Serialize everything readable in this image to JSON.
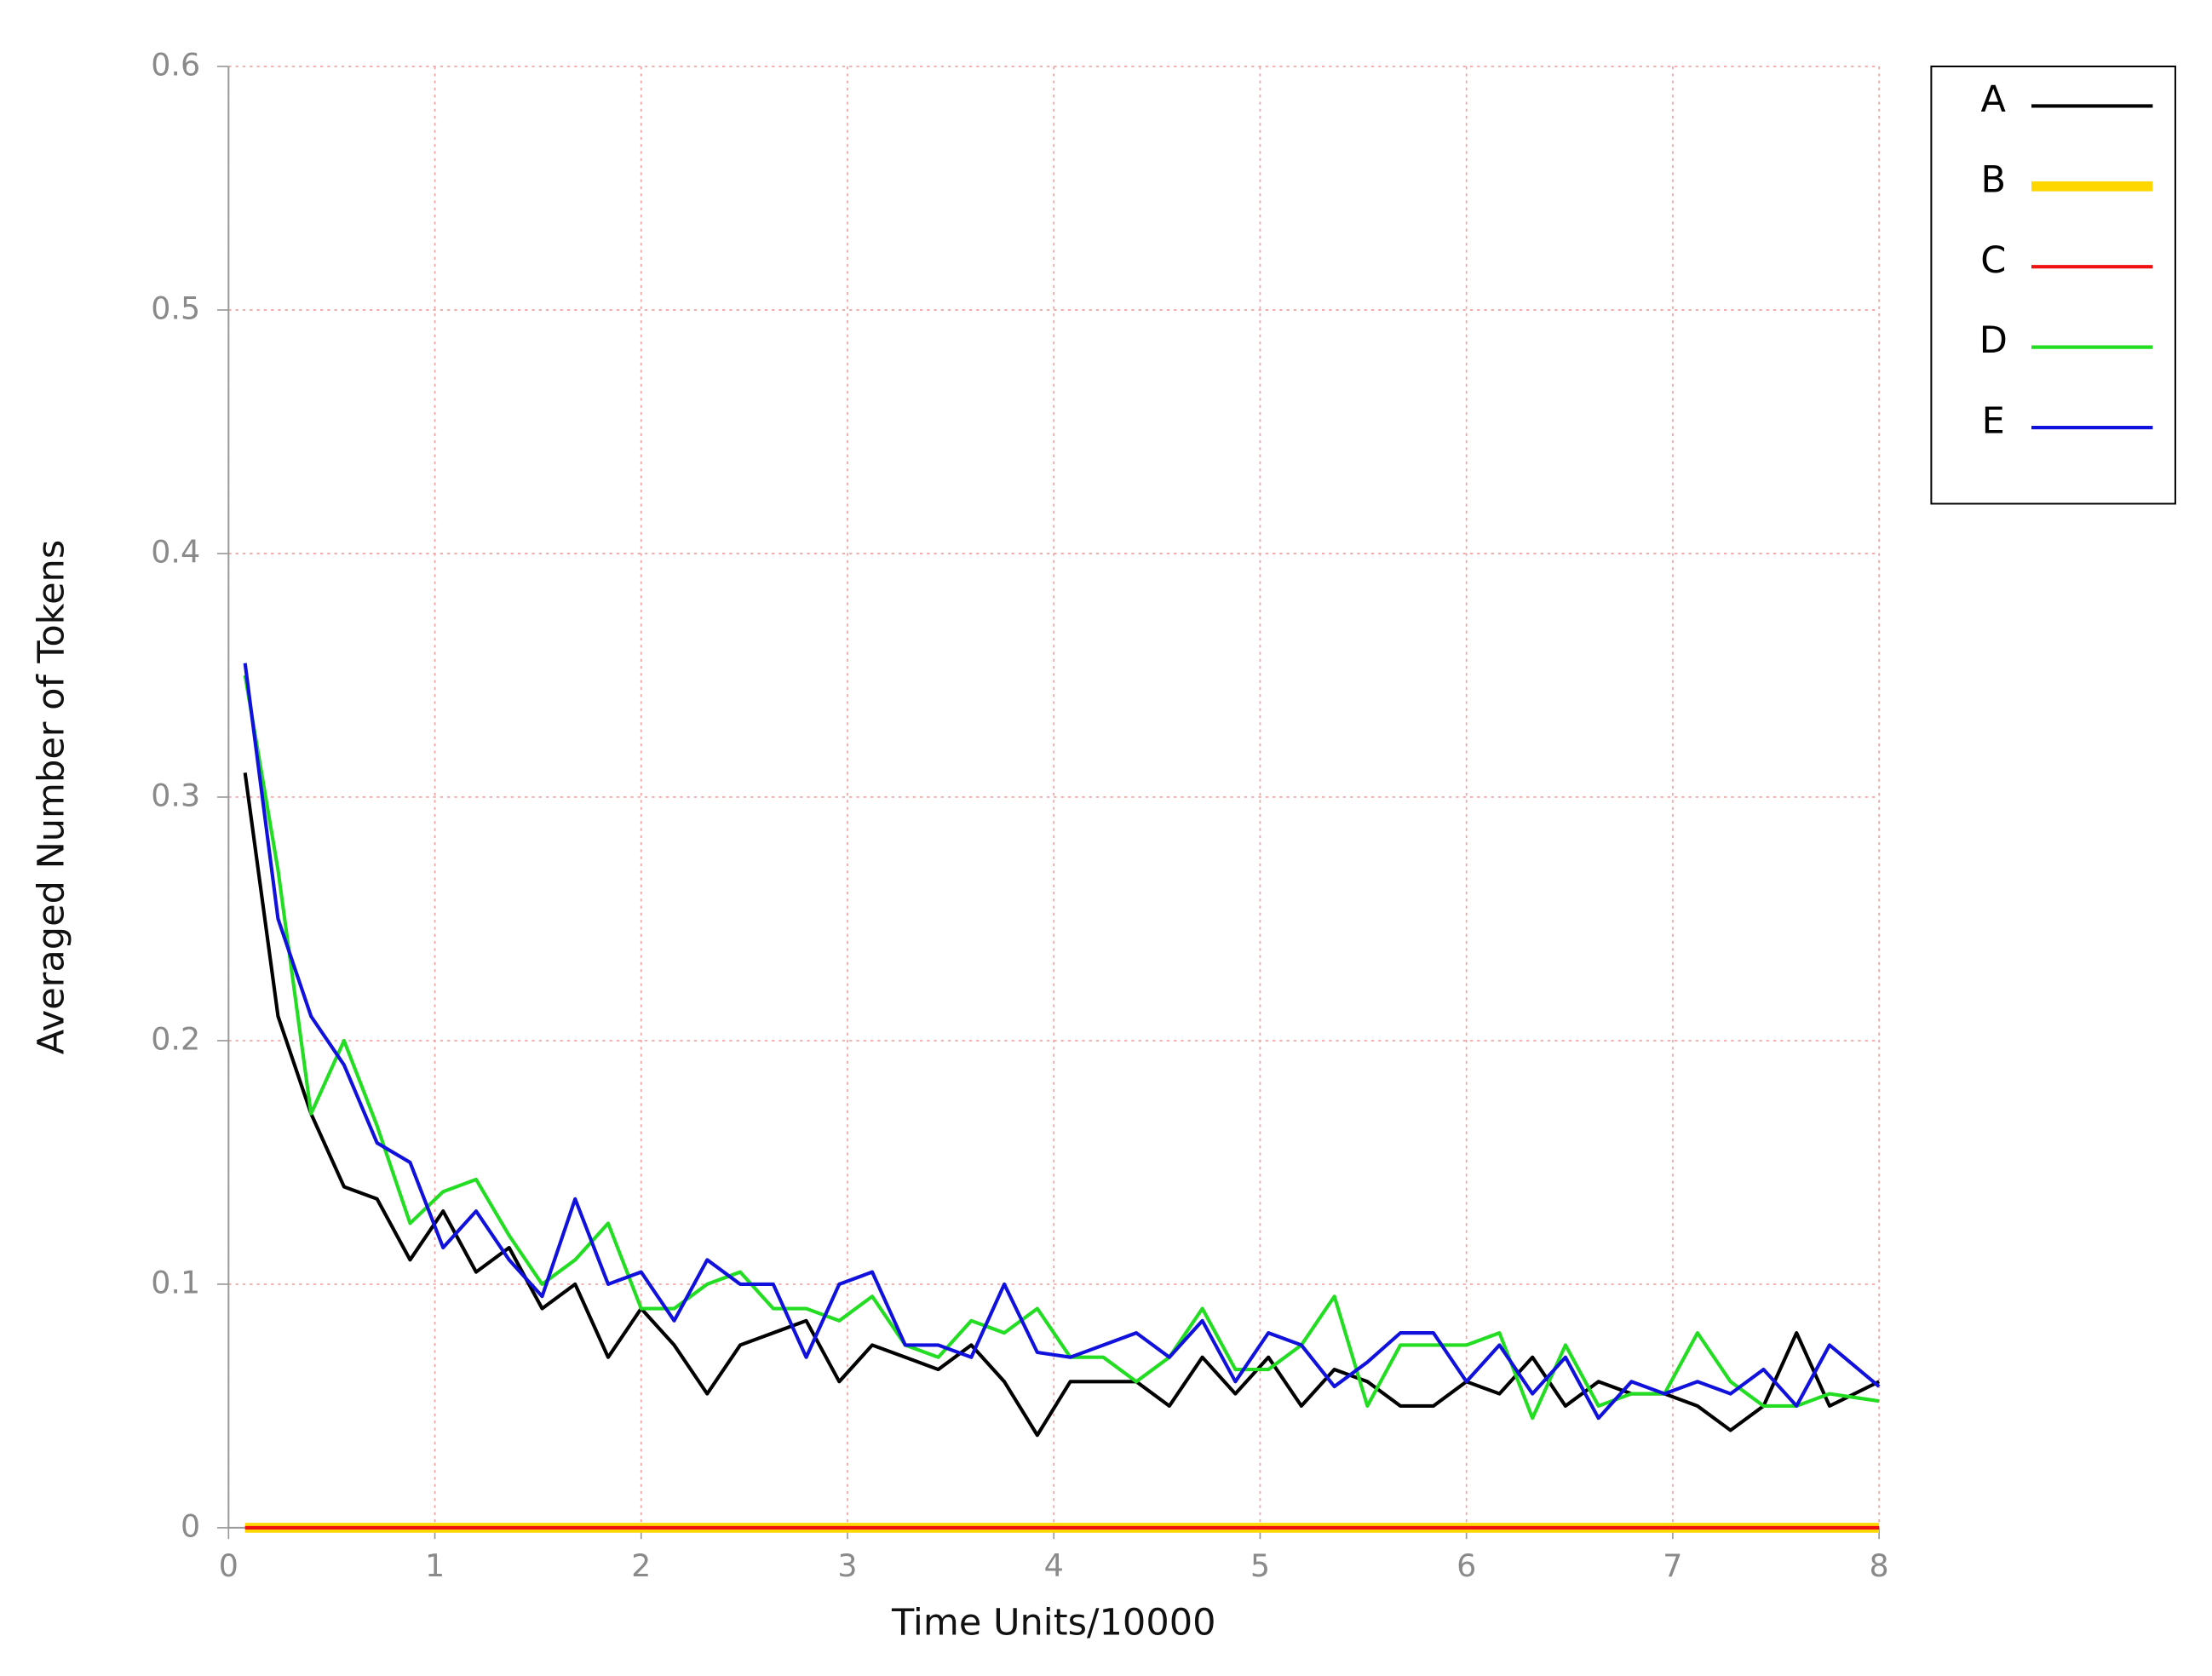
{
  "chart_data": {
    "type": "line",
    "xlabel": "Time Units/10000",
    "ylabel": "Averaged Number of Tokens",
    "x": [
      0.08,
      0.24,
      0.4,
      0.56,
      0.72,
      0.88,
      1.04,
      1.2,
      1.36,
      1.52,
      1.68,
      1.84,
      2.0,
      2.16,
      2.32,
      2.48,
      2.64,
      2.8,
      2.96,
      3.12,
      3.28,
      3.44,
      3.6,
      3.76,
      3.92,
      4.08,
      4.24,
      4.4,
      4.56,
      4.72,
      4.88,
      5.04,
      5.2,
      5.36,
      5.52,
      5.68,
      5.84,
      6.0,
      6.16,
      6.32,
      6.48,
      6.64,
      6.8,
      6.96,
      7.12,
      7.28,
      7.44,
      7.6,
      7.76,
      8.0
    ],
    "series": [
      {
        "name": "A",
        "color": "#000000",
        "width": 2.5,
        "values": [
          0.31,
          0.21,
          0.17,
          0.14,
          0.135,
          0.11,
          0.13,
          0.105,
          0.115,
          0.09,
          0.1,
          0.07,
          0.09,
          0.075,
          0.055,
          0.075,
          0.08,
          0.085,
          0.06,
          0.075,
          0.07,
          0.065,
          0.075,
          0.06,
          0.038,
          0.06,
          0.06,
          0.06,
          0.05,
          0.07,
          0.055,
          0.07,
          0.05,
          0.065,
          0.06,
          0.05,
          0.05,
          0.06,
          0.055,
          0.07,
          0.05,
          0.06,
          0.055,
          0.055,
          0.05,
          0.04,
          0.05,
          0.08,
          0.05,
          0.06
        ]
      },
      {
        "name": "B",
        "color": "#ffd700",
        "width": 7,
        "values": [
          0,
          0,
          0,
          0,
          0,
          0,
          0,
          0,
          0,
          0,
          0,
          0,
          0,
          0,
          0,
          0,
          0,
          0,
          0,
          0,
          0,
          0,
          0,
          0,
          0,
          0,
          0,
          0,
          0,
          0,
          0,
          0,
          0,
          0,
          0,
          0,
          0,
          0,
          0,
          0,
          0,
          0,
          0,
          0,
          0,
          0,
          0,
          0,
          0,
          0
        ]
      },
      {
        "name": "C",
        "color": "#ee1111",
        "width": 2.5,
        "values": [
          0,
          0,
          0,
          0,
          0,
          0,
          0,
          0,
          0,
          0,
          0,
          0,
          0,
          0,
          0,
          0,
          0,
          0,
          0,
          0,
          0,
          0,
          0,
          0,
          0,
          0,
          0,
          0,
          0,
          0,
          0,
          0,
          0,
          0,
          0,
          0,
          0,
          0,
          0,
          0,
          0,
          0,
          0,
          0,
          0,
          0,
          0,
          0,
          0,
          0
        ]
      },
      {
        "name": "D",
        "color": "#22dd22",
        "width": 2.5,
        "values": [
          0.35,
          0.27,
          0.17,
          0.2,
          0.165,
          0.125,
          0.138,
          0.143,
          0.12,
          0.1,
          0.11,
          0.125,
          0.09,
          0.09,
          0.1,
          0.105,
          0.09,
          0.09,
          0.085,
          0.095,
          0.075,
          0.07,
          0.085,
          0.08,
          0.09,
          0.07,
          0.07,
          0.06,
          0.07,
          0.09,
          0.065,
          0.065,
          0.075,
          0.095,
          0.05,
          0.075,
          0.075,
          0.075,
          0.08,
          0.045,
          0.075,
          0.05,
          0.055,
          0.055,
          0.08,
          0.06,
          0.05,
          0.05,
          0.055,
          0.052
        ]
      },
      {
        "name": "E",
        "color": "#1111dd",
        "width": 2.5,
        "values": [
          0.355,
          0.25,
          0.21,
          0.19,
          0.158,
          0.15,
          0.115,
          0.13,
          0.11,
          0.095,
          0.135,
          0.1,
          0.105,
          0.085,
          0.11,
          0.1,
          0.1,
          0.07,
          0.1,
          0.105,
          0.075,
          0.075,
          0.07,
          0.1,
          0.072,
          0.07,
          0.075,
          0.08,
          0.07,
          0.085,
          0.06,
          0.08,
          0.075,
          0.058,
          0.068,
          0.08,
          0.08,
          0.06,
          0.075,
          0.055,
          0.07,
          0.045,
          0.06,
          0.055,
          0.06,
          0.055,
          0.065,
          0.05,
          0.075,
          0.058
        ]
      }
    ],
    "xlim": [
      0,
      8
    ],
    "xticks": [
      0,
      1,
      2,
      3,
      4,
      5,
      6,
      7,
      8
    ],
    "ylim": [
      0,
      0.6
    ],
    "yticks": [
      0,
      0.1,
      0.2,
      0.3,
      0.4,
      0.5,
      0.6
    ],
    "grid": true,
    "legend": "outside-right-top"
  }
}
